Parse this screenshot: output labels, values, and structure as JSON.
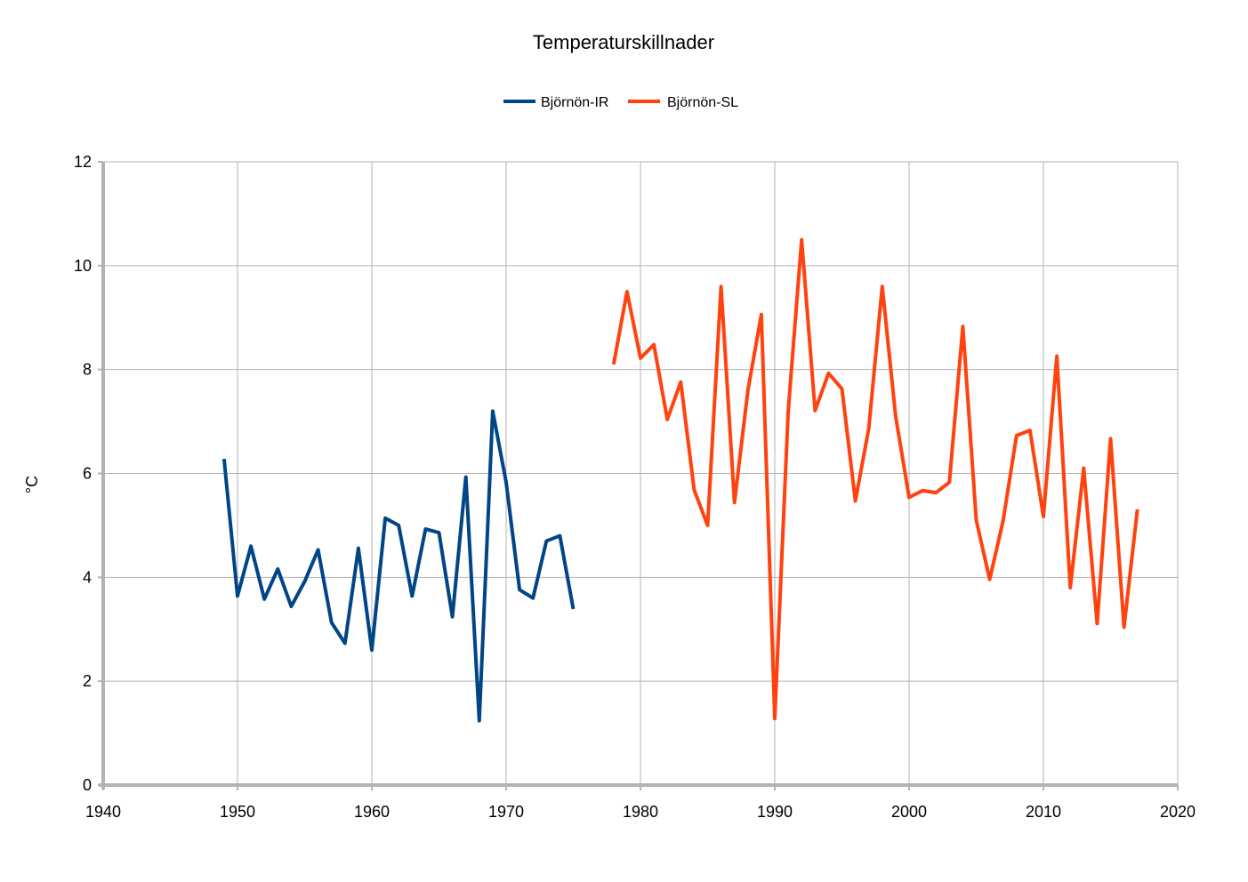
{
  "chart_data": {
    "type": "line",
    "title": "Temperaturskillnader",
    "xlabel": "",
    "ylabel": "°C",
    "xlim": [
      1940,
      2020
    ],
    "ylim": [
      0,
      12
    ],
    "xticks": [
      1940,
      1950,
      1960,
      1970,
      1980,
      1990,
      2000,
      2010,
      2020
    ],
    "yticks": [
      0,
      2,
      4,
      6,
      8,
      10,
      12
    ],
    "grid": true,
    "legend_position": "top-center",
    "series": [
      {
        "name": "Björnön-IR",
        "color": "#004586",
        "x": [
          1949,
          1950,
          1951,
          1952,
          1953,
          1954,
          1955,
          1956,
          1957,
          1958,
          1959,
          1960,
          1961,
          1962,
          1963,
          1964,
          1965,
          1966,
          1967,
          1968,
          1969,
          1970,
          1971,
          1972,
          1973,
          1974,
          1975
        ],
        "y": [
          6.28,
          3.64,
          4.6,
          3.58,
          4.16,
          3.44,
          3.92,
          4.53,
          3.13,
          2.73,
          4.56,
          2.6,
          5.14,
          5.0,
          3.64,
          4.93,
          4.86,
          3.24,
          5.93,
          1.24,
          7.2,
          5.83,
          3.76,
          3.6,
          4.7,
          4.8,
          3.39
        ]
      },
      {
        "name": "Björnön-SL",
        "color": "#ff420e",
        "x": [
          1978,
          1979,
          1980,
          1981,
          1982,
          1983,
          1984,
          1985,
          1986,
          1987,
          1988,
          1989,
          1990,
          1991,
          1992,
          1993,
          1994,
          1995,
          1996,
          1997,
          1998,
          1999,
          2000,
          2001,
          2002,
          2003,
          2004,
          2005,
          2006,
          2007,
          2008,
          2009,
          2010,
          2011,
          2012,
          2013,
          2014,
          2015,
          2016,
          2017
        ],
        "y": [
          8.1,
          9.5,
          8.22,
          8.48,
          7.04,
          7.76,
          5.68,
          5.0,
          9.6,
          5.44,
          7.6,
          9.06,
          1.28,
          7.2,
          10.5,
          7.21,
          7.93,
          7.63,
          5.47,
          6.87,
          9.6,
          7.1,
          5.54,
          5.67,
          5.63,
          5.83,
          8.83,
          5.1,
          3.96,
          5.09,
          6.73,
          6.83,
          5.17,
          8.26,
          3.8,
          6.1,
          3.11,
          6.67,
          3.04,
          5.31
        ]
      }
    ]
  }
}
